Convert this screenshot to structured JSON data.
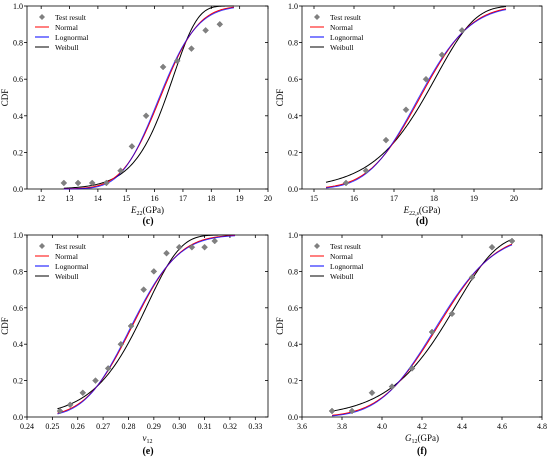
{
  "chart_data": [
    {
      "type": "scatter",
      "panel_label": "(c)",
      "xlabel_main": "E",
      "xlabel_sub": "22",
      "xlabel_unit": "(GPa)",
      "ylabel": "CDF",
      "xlim": [
        11.5,
        20
      ],
      "ylim": [
        0,
        1
      ],
      "xticks": [
        12,
        13,
        14,
        15,
        16,
        17,
        18,
        19,
        20
      ],
      "xtick_labels": [
        "12",
        "13",
        "14",
        "15",
        "16",
        "17",
        "18",
        "19",
        "20"
      ],
      "yticks": [
        0,
        0.2,
        0.4,
        0.6,
        0.8,
        1.0
      ],
      "ytick_labels": [
        "0.0",
        "0.2",
        "0.4",
        "0.6",
        "0.8",
        "1.0"
      ],
      "legend": [
        "Test result",
        "Normal",
        "Lognormal",
        "Weibull"
      ],
      "legend_position": "top-left",
      "points": {
        "x": [
          12.8,
          13.3,
          13.8,
          14.3,
          14.8,
          15.2,
          15.7,
          16.3,
          16.8,
          17.3,
          17.8,
          18.3
        ],
        "y": [
          0.033,
          0.033,
          0.033,
          0.033,
          0.1,
          0.233,
          0.4,
          0.667,
          0.7,
          0.767,
          0.867,
          0.9
        ]
      },
      "fits": {
        "normal": {
          "mu": 16.2,
          "sigma": 1.05
        },
        "lognormal": {
          "mu": 16.2,
          "sigma": 1.05
        },
        "weibull": {
          "k": 20.5,
          "lambda": 16.7
        }
      },
      "curve_range": [
        12.8,
        18.8
      ]
    },
    {
      "type": "scatter",
      "panel_label": "(d)",
      "xlabel_main": "E",
      "xlabel_sub": "22,s",
      "xlabel_unit": "(GPa)",
      "ylabel": "CDF",
      "xlim": [
        14.7,
        20.7
      ],
      "ylim": [
        0,
        1
      ],
      "xticks": [
        15,
        16,
        17,
        18,
        19,
        20
      ],
      "xtick_labels": [
        "15",
        "16",
        "17",
        "18",
        "19",
        "20"
      ],
      "yticks": [
        0,
        0.2,
        0.4,
        0.6,
        0.8,
        1.0
      ],
      "ytick_labels": [
        "0.0",
        "0.2",
        "0.4",
        "0.6",
        "0.8",
        "1.0"
      ],
      "legend": [
        "Test result",
        "Normal",
        "Lognormal",
        "Weibull"
      ],
      "legend_position": "top-left",
      "points": {
        "x": [
          15.8,
          16.3,
          16.8,
          17.3,
          17.8,
          18.2,
          18.7
        ],
        "y": [
          0.033,
          0.1,
          0.267,
          0.433,
          0.6,
          0.733,
          0.867
        ]
      },
      "fits": {
        "normal": {
          "mu": 17.65,
          "sigma": 1.0
        },
        "lognormal": {
          "mu": 17.65,
          "sigma": 1.0
        },
        "weibull": {
          "k": 19.5,
          "lambda": 18.1
        }
      },
      "curve_range": [
        15.3,
        19.8
      ]
    },
    {
      "type": "scatter",
      "panel_label": "(e)",
      "xlabel_main": "v",
      "xlabel_sub": "12",
      "xlabel_unit": "",
      "ylabel": "CDF",
      "xlim": [
        0.24,
        0.335
      ],
      "ylim": [
        0,
        1
      ],
      "xticks": [
        0.24,
        0.25,
        0.26,
        0.27,
        0.28,
        0.29,
        0.3,
        0.31,
        0.32,
        0.33
      ],
      "xtick_labels": [
        "0.24",
        "0.25",
        "0.26",
        "0.27",
        "0.28",
        "0.29",
        "0.30",
        "0.31",
        "0.32",
        "0.33"
      ],
      "yticks": [
        0,
        0.2,
        0.4,
        0.6,
        0.8,
        1.0
      ],
      "ytick_labels": [
        "0.0",
        "0.2",
        "0.4",
        "0.6",
        "0.8",
        "1.0"
      ],
      "legend": [
        "Test result",
        "Normal",
        "Lognormal",
        "Weibull"
      ],
      "legend_position": "top-left",
      "points": {
        "x": [
          0.253,
          0.257,
          0.262,
          0.267,
          0.272,
          0.277,
          0.281,
          0.286,
          0.29,
          0.295,
          0.3,
          0.305,
          0.31,
          0.314
        ],
        "y": [
          0.033,
          0.067,
          0.133,
          0.2,
          0.267,
          0.4,
          0.5,
          0.7,
          0.8,
          0.9,
          0.933,
          0.933,
          0.933,
          0.967
        ]
      },
      "fits": {
        "normal": {
          "mu": 0.2815,
          "sigma": 0.0145
        },
        "lognormal": {
          "mu": 0.2815,
          "sigma": 0.0145
        },
        "weibull": {
          "k": 23.0,
          "lambda": 0.288
        }
      },
      "curve_range": [
        0.252,
        0.322
      ]
    },
    {
      "type": "scatter",
      "panel_label": "(f)",
      "xlabel_main": "G",
      "xlabel_sub": "12",
      "xlabel_unit": "(GPa)",
      "ylabel": "CDF",
      "xlim": [
        3.6,
        4.8
      ],
      "ylim": [
        0,
        1
      ],
      "xticks": [
        3.6,
        3.8,
        4.0,
        4.2,
        4.4,
        4.6,
        4.8
      ],
      "xtick_labels": [
        "3.6",
        "3.8",
        "4.0",
        "4.2",
        "4.4",
        "4.6",
        "4.8"
      ],
      "yticks": [
        0,
        0.2,
        0.4,
        0.6,
        0.8,
        1.0
      ],
      "ytick_labels": [
        "0.0",
        "0.2",
        "0.4",
        "0.6",
        "0.8",
        "1.0"
      ],
      "legend": [
        "Test result",
        "Normal",
        "Lognormal",
        "Weibull"
      ],
      "legend_position": "top-left",
      "points": {
        "x": [
          3.75,
          3.85,
          3.95,
          4.05,
          4.15,
          4.25,
          4.35,
          4.45,
          4.55,
          4.65
        ],
        "y": [
          0.033,
          0.033,
          0.133,
          0.167,
          0.267,
          0.467,
          0.567,
          0.767,
          0.933,
          0.967
        ]
      },
      "fits": {
        "normal": {
          "mu": 4.28,
          "sigma": 0.225
        },
        "lognormal": {
          "mu": 4.28,
          "sigma": 0.225
        },
        "weibull": {
          "k": 22.0,
          "lambda": 4.38
        }
      },
      "curve_range": [
        3.75,
        4.65
      ]
    }
  ],
  "series_colors": {
    "test_result": "#808080",
    "normal": "#ff0000",
    "lognormal": "#0000ff",
    "weibull": "#000000"
  }
}
